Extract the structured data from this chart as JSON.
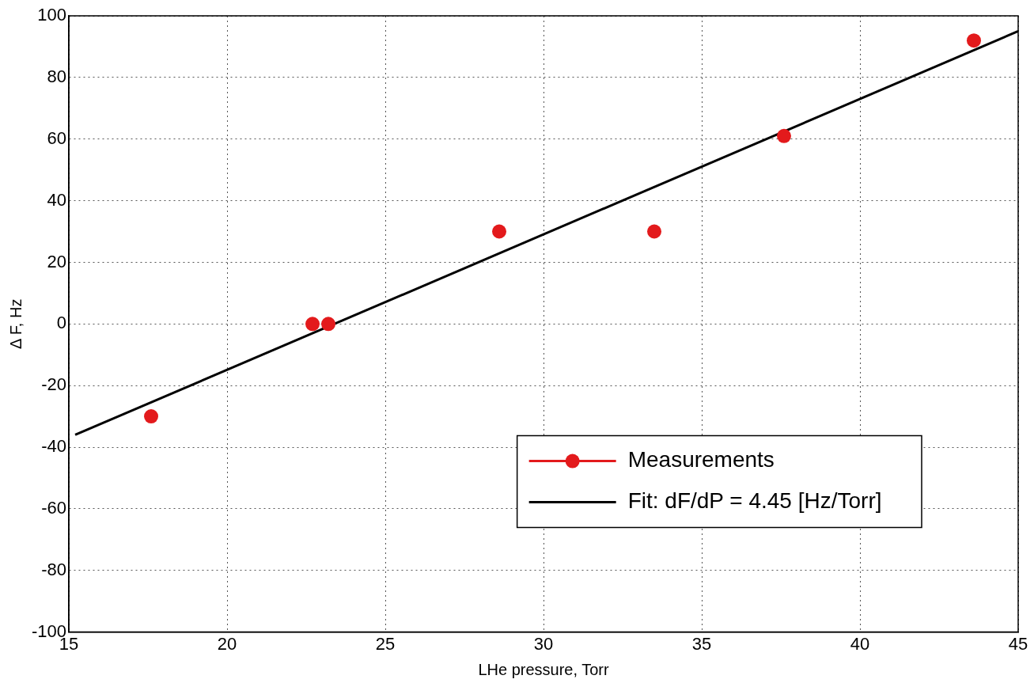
{
  "chart_data": {
    "type": "scatter",
    "xlabel": "LHe pressure, Torr",
    "ylabel": "Δ F, Hz",
    "series": [
      {
        "name": "Measurements",
        "marker": "circle",
        "color": "#e31a1c",
        "x": [
          17.6,
          22.7,
          23.2,
          28.6,
          33.5,
          37.6,
          43.6
        ],
        "values": [
          -30,
          0,
          0,
          30,
          30,
          61,
          92
        ]
      },
      {
        "name": "Fit: dF/dP = 4.45 [Hz/Torr]",
        "type": "line",
        "marker": "none",
        "color": "#000000",
        "x": [
          15.2,
          45
        ],
        "values": [
          -36,
          95
        ]
      }
    ],
    "xlim": [
      15,
      45
    ],
    "xticks": [
      15,
      20,
      25,
      30,
      35,
      40,
      45
    ],
    "ylim": [
      -100,
      100
    ],
    "yticks": [
      -100,
      -80,
      -60,
      -40,
      -20,
      0,
      20,
      40,
      60,
      80,
      100
    ],
    "grid": true,
    "legend": "bottom right"
  }
}
